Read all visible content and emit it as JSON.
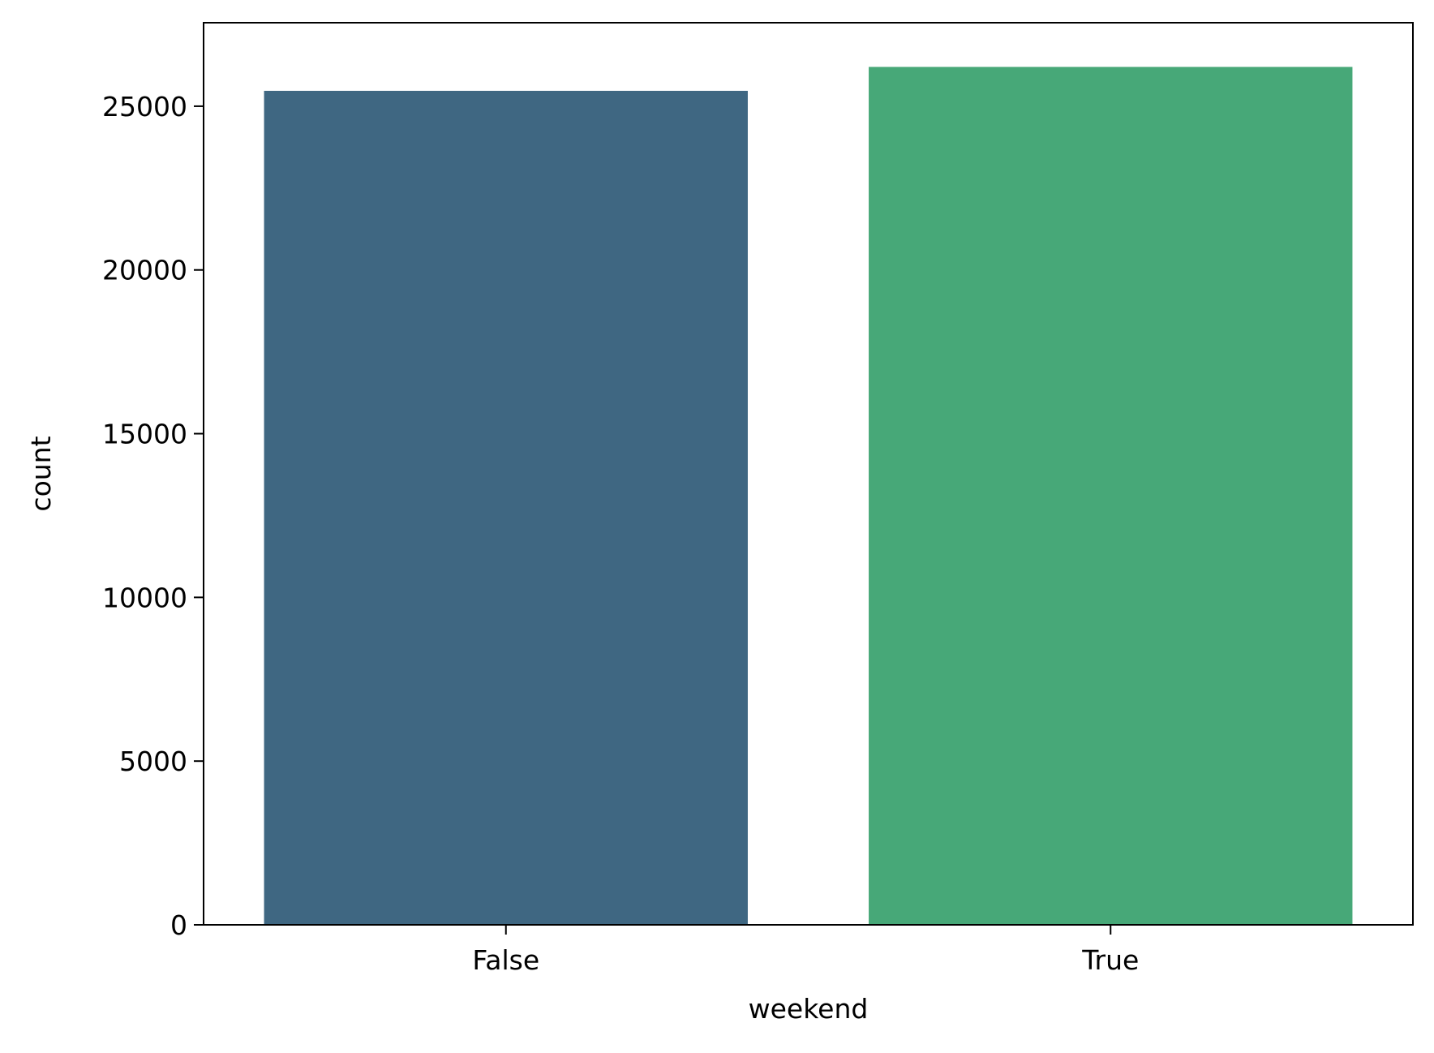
{
  "chart_data": {
    "type": "bar",
    "categories": [
      "False",
      "True"
    ],
    "values": [
      25470,
      26200
    ],
    "colors": [
      "#3f6782",
      "#47a878"
    ],
    "xlabel": "weekend",
    "ylabel": "count",
    "ylim": [
      0,
      27550
    ],
    "yticks": [
      0,
      5000,
      10000,
      15000,
      20000,
      25000
    ],
    "ytick_labels": [
      "0",
      "5000",
      "10000",
      "15000",
      "20000",
      "25000"
    ],
    "grid": false,
    "legend": "none"
  }
}
